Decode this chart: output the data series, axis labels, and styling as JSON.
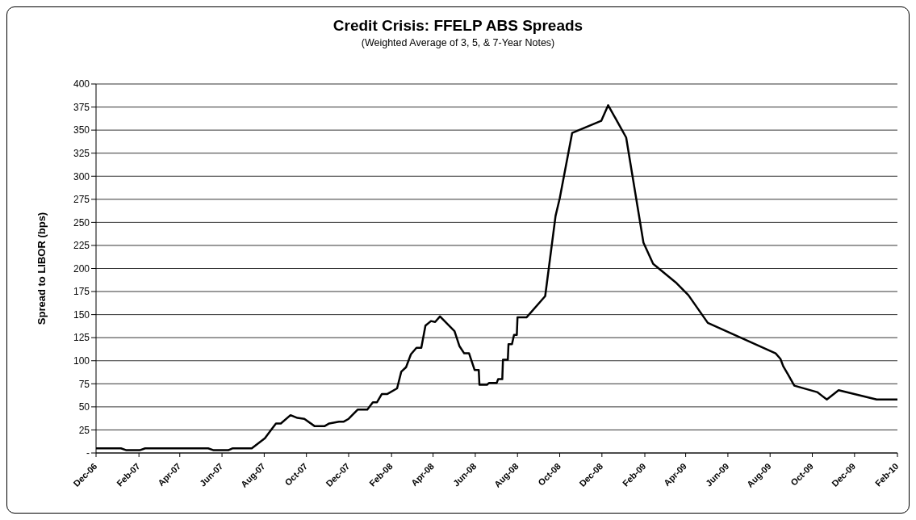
{
  "chart_data": {
    "type": "line",
    "title": "Credit Crisis: FFELP ABS Spreads",
    "subtitle": "(Weighted Average of 3, 5, & 7-Year Notes)",
    "ylabel": "Spread to LIBOR (bps)",
    "x": [
      "2006-12-01",
      "2007-01-06",
      "2007-01-14",
      "2007-02-02",
      "2007-02-10",
      "2007-05-12",
      "2007-05-20",
      "2007-06-10",
      "2007-06-16",
      "2007-07-14",
      "2007-08-02",
      "2007-08-12",
      "2007-08-18",
      "2007-08-25",
      "2007-09-08",
      "2007-09-18",
      "2007-09-28",
      "2007-10-13",
      "2007-10-27",
      "2007-11-03",
      "2007-11-17",
      "2007-11-24",
      "2007-12-01",
      "2007-12-14",
      "2007-12-28",
      "2008-01-05",
      "2008-01-11",
      "2008-01-18",
      "2008-01-26",
      "2008-02-09",
      "2008-02-15",
      "2008-02-22",
      "2008-02-29",
      "2008-03-08",
      "2008-03-15",
      "2008-03-21",
      "2008-03-29",
      "2008-04-04",
      "2008-04-11",
      "2008-05-02",
      "2008-05-09",
      "2008-05-16",
      "2008-05-23",
      "2008-05-31",
      "2008-06-06",
      "2008-06-07",
      "2008-06-18",
      "2008-06-21",
      "2008-07-02",
      "2008-07-04",
      "2008-07-10",
      "2008-07-11",
      "2008-07-18",
      "2008-07-19",
      "2008-07-24",
      "2008-07-27",
      "2008-07-31",
      "2008-08-01",
      "2008-08-14",
      "2008-09-10",
      "2008-09-25",
      "2008-10-01",
      "2008-10-19",
      "2008-11-30",
      "2008-12-10",
      "2009-01-05",
      "2009-01-30",
      "2009-02-13",
      "2009-03-19",
      "2009-04-05",
      "2009-05-03",
      "2009-08-09",
      "2009-08-16",
      "2009-08-20",
      "2009-08-27",
      "2009-09-05",
      "2009-10-08",
      "2009-10-22",
      "2009-11-08",
      "2010-01-02",
      "2010-02-01"
    ],
    "series": [
      {
        "color": "#000000",
        "values": [
          5,
          5,
          3,
          3,
          5,
          5,
          3,
          3,
          5,
          5,
          16,
          26,
          32,
          32,
          41,
          38,
          37,
          29,
          29,
          32,
          34,
          34,
          37,
          47,
          47,
          55,
          55,
          64,
          64,
          70,
          88,
          93,
          107,
          114,
          114,
          138,
          143,
          142,
          148,
          132,
          116,
          108,
          108,
          90,
          90,
          74,
          74,
          76,
          76,
          80,
          80,
          101,
          101,
          118,
          118,
          128,
          128,
          147,
          147,
          170,
          257,
          276,
          347,
          360,
          377,
          342,
          228,
          205,
          184,
          171,
          141,
          108,
          102,
          94,
          85,
          73,
          66,
          58,
          68,
          58,
          58
        ]
      }
    ],
    "xlim": [
      "2006-12-01",
      "2010-02-01"
    ],
    "xticks": [
      {
        "value": "2006-12-01",
        "label": "Dec-06"
      },
      {
        "value": "2007-02-01",
        "label": "Feb-07"
      },
      {
        "value": "2007-04-01",
        "label": "Apr-07"
      },
      {
        "value": "2007-06-01",
        "label": "Jun-07"
      },
      {
        "value": "2007-08-01",
        "label": "Aug-07"
      },
      {
        "value": "2007-10-01",
        "label": "Oct-07"
      },
      {
        "value": "2007-12-01",
        "label": "Dec-07"
      },
      {
        "value": "2008-02-01",
        "label": "Feb-08"
      },
      {
        "value": "2008-04-01",
        "label": "Apr-08"
      },
      {
        "value": "2008-06-01",
        "label": "Jun-08"
      },
      {
        "value": "2008-08-01",
        "label": "Aug-08"
      },
      {
        "value": "2008-10-01",
        "label": "Oct-08"
      },
      {
        "value": "2008-12-01",
        "label": "Dec-08"
      },
      {
        "value": "2009-02-01",
        "label": "Feb-09"
      },
      {
        "value": "2009-04-01",
        "label": "Apr-09"
      },
      {
        "value": "2009-06-01",
        "label": "Jun-09"
      },
      {
        "value": "2009-08-01",
        "label": "Aug-09"
      },
      {
        "value": "2009-10-01",
        "label": "Oct-09"
      },
      {
        "value": "2009-12-01",
        "label": "Dec-09"
      },
      {
        "value": "2010-02-01",
        "label": "Feb-10"
      }
    ],
    "ylim": [
      0,
      400
    ],
    "yticks": [
      {
        "value": 0,
        "label": "-"
      },
      25,
      50,
      75,
      100,
      125,
      150,
      175,
      200,
      225,
      250,
      275,
      300,
      325,
      350,
      375,
      400
    ],
    "grid": "y",
    "line_style": "solid"
  }
}
